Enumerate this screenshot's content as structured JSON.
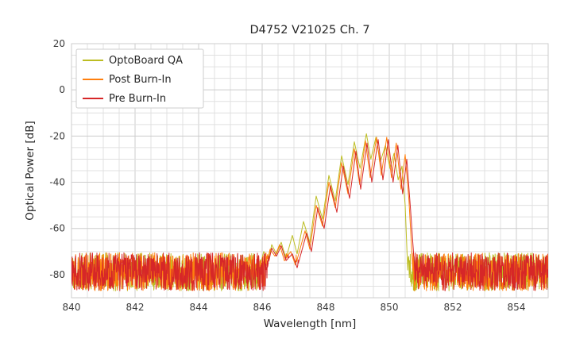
{
  "figure": {
    "background": "#ffffff",
    "grid_minor_color": "#e0e0e0",
    "grid_major_color": "#cccccc",
    "border_color": "#cccccc"
  },
  "chart_data": {
    "type": "line",
    "title": "D4752 V21025 Ch. 7",
    "xlabel": "Wavelength [nm]",
    "ylabel": "Optical Power [dB]",
    "xlim": [
      840,
      855
    ],
    "ylim": [
      -90,
      20
    ],
    "x_ticks": [
      840,
      842,
      844,
      846,
      848,
      850,
      852,
      854
    ],
    "y_ticks": [
      20,
      0,
      -20,
      -40,
      -60,
      -80
    ],
    "x_minor_step": 0.5,
    "y_minor_step": 5,
    "grid": true,
    "legend_position": "upper left",
    "noise_floor": {
      "mean": -79,
      "min": -87,
      "max": -70.5,
      "x_step": 0.01
    },
    "series": [
      {
        "name": "OptoBoard QA",
        "color": "#bcbd22",
        "peak_wavelength_nm": 849.3,
        "peak_power_db": -19,
        "envelope": [
          [
            845.9,
            -78
          ],
          [
            846.05,
            -70
          ],
          [
            846.2,
            -74
          ],
          [
            846.3,
            -67
          ],
          [
            846.45,
            -71
          ],
          [
            846.6,
            -66
          ],
          [
            846.75,
            -73
          ],
          [
            846.95,
            -63
          ],
          [
            847.1,
            -71
          ],
          [
            847.3,
            -57
          ],
          [
            847.5,
            -66
          ],
          [
            847.7,
            -46
          ],
          [
            847.9,
            -56
          ],
          [
            848.1,
            -37
          ],
          [
            848.3,
            -48
          ],
          [
            848.5,
            -28.5
          ],
          [
            848.7,
            -41
          ],
          [
            848.9,
            -22.5
          ],
          [
            849.08,
            -34
          ],
          [
            849.28,
            -19
          ],
          [
            849.42,
            -30
          ],
          [
            849.58,
            -20.5
          ],
          [
            849.72,
            -31
          ],
          [
            849.88,
            -24
          ],
          [
            850.02,
            -34
          ],
          [
            850.15,
            -27.5
          ],
          [
            850.28,
            -39
          ],
          [
            850.4,
            -33
          ],
          [
            850.5,
            -50
          ],
          [
            850.58,
            -78
          ]
        ]
      },
      {
        "name": "Post Burn-In",
        "color": "#ff7f0e",
        "peak_wavelength_nm": 849.8,
        "peak_power_db": -20.5,
        "envelope": [
          [
            846.1,
            -78
          ],
          [
            846.25,
            -69
          ],
          [
            846.4,
            -72
          ],
          [
            846.55,
            -67
          ],
          [
            846.7,
            -74
          ],
          [
            846.9,
            -70
          ],
          [
            847.05,
            -76
          ],
          [
            847.35,
            -61
          ],
          [
            847.5,
            -69
          ],
          [
            847.7,
            -50
          ],
          [
            847.9,
            -59
          ],
          [
            848.1,
            -40
          ],
          [
            848.3,
            -51
          ],
          [
            848.5,
            -31.5
          ],
          [
            848.7,
            -45
          ],
          [
            848.9,
            -25.5
          ],
          [
            849.07,
            -41
          ],
          [
            849.25,
            -22
          ],
          [
            849.4,
            -38
          ],
          [
            849.6,
            -20.5
          ],
          [
            849.75,
            -37
          ],
          [
            849.92,
            -20.5
          ],
          [
            850.07,
            -38
          ],
          [
            850.22,
            -23
          ],
          [
            850.37,
            -43
          ],
          [
            850.5,
            -28
          ],
          [
            850.62,
            -48
          ],
          [
            850.74,
            -78
          ]
        ]
      },
      {
        "name": "Pre Burn-In",
        "color": "#d62728",
        "peak_wavelength_nm": 849.9,
        "peak_power_db": -21.5,
        "envelope": [
          [
            846.15,
            -78
          ],
          [
            846.3,
            -68.5
          ],
          [
            846.45,
            -72
          ],
          [
            846.6,
            -67.5
          ],
          [
            846.75,
            -74
          ],
          [
            846.95,
            -71
          ],
          [
            847.1,
            -77
          ],
          [
            847.4,
            -62
          ],
          [
            847.55,
            -70
          ],
          [
            847.75,
            -51
          ],
          [
            847.95,
            -60
          ],
          [
            848.15,
            -41.5
          ],
          [
            848.35,
            -53
          ],
          [
            848.55,
            -33
          ],
          [
            848.75,
            -47
          ],
          [
            848.95,
            -26.5
          ],
          [
            849.1,
            -43
          ],
          [
            849.3,
            -23
          ],
          [
            849.45,
            -40
          ],
          [
            849.65,
            -21.5
          ],
          [
            849.8,
            -39
          ],
          [
            849.97,
            -21.5
          ],
          [
            850.12,
            -40
          ],
          [
            850.27,
            -24
          ],
          [
            850.42,
            -45
          ],
          [
            850.55,
            -30
          ],
          [
            850.67,
            -52
          ],
          [
            850.8,
            -78
          ]
        ]
      }
    ]
  }
}
